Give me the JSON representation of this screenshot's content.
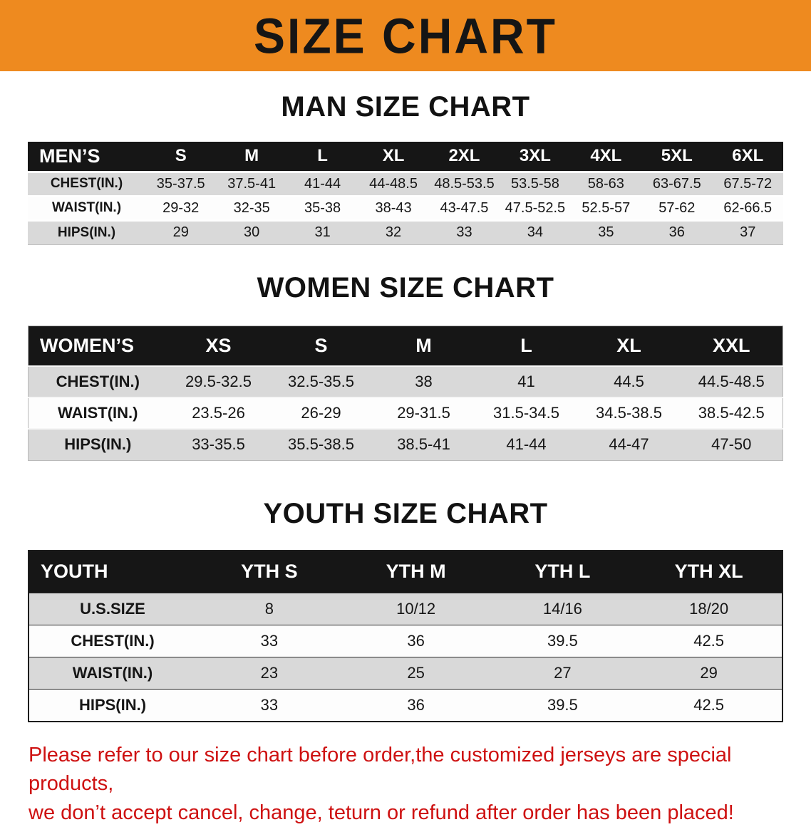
{
  "banner": {
    "title": "SIZE CHART"
  },
  "colors": {
    "banner_bg": "#ee8a1f",
    "header_bg": "#161616",
    "row_gray": "#d9d9d9",
    "note_red": "#ce1111"
  },
  "sections": [
    {
      "heading": "MAN SIZE CHART",
      "table": {
        "header": [
          "MEN’S",
          "S",
          "M",
          "L",
          "XL",
          "2XL",
          "3XL",
          "4XL",
          "5XL",
          "6XL"
        ],
        "rows": [
          [
            "CHEST(IN.)",
            "35-37.5",
            "37.5-41",
            "41-44",
            "44-48.5",
            "48.5-53.5",
            "53.5-58",
            "58-63",
            "63-67.5",
            "67.5-72"
          ],
          [
            "WAIST(IN.)",
            "29-32",
            "32-35",
            "35-38",
            "38-43",
            "43-47.5",
            "47.5-52.5",
            "52.5-57",
            "57-62",
            "62-66.5"
          ],
          [
            "HIPS(IN.)",
            "29",
            "30",
            "31",
            "32",
            "33",
            "34",
            "35",
            "36",
            "37"
          ]
        ]
      }
    },
    {
      "heading": "WOMEN SIZE CHART",
      "table": {
        "header": [
          "WOMEN’S",
          "XS",
          "S",
          "M",
          "L",
          "XL",
          "XXL"
        ],
        "rows": [
          [
            "CHEST(IN.)",
            "29.5-32.5",
            "32.5-35.5",
            "38",
            "41",
            "44.5",
            "44.5-48.5"
          ],
          [
            "WAIST(IN.)",
            "23.5-26",
            "26-29",
            "29-31.5",
            "31.5-34.5",
            "34.5-38.5",
            "38.5-42.5"
          ],
          [
            "HIPS(IN.)",
            "33-35.5",
            "35.5-38.5",
            "38.5-41",
            "41-44",
            "44-47",
            "47-50"
          ]
        ]
      }
    },
    {
      "heading": "YOUTH SIZE CHART",
      "table": {
        "header": [
          "YOUTH",
          "YTH S",
          "YTH M",
          "YTH L",
          "YTH XL"
        ],
        "rows": [
          [
            "U.S.SIZE",
            "8",
            "10/12",
            "14/16",
            "18/20"
          ],
          [
            "CHEST(IN.)",
            "33",
            "36",
            "39.5",
            "42.5"
          ],
          [
            "WAIST(IN.)",
            "23",
            "25",
            "27",
            "29"
          ],
          [
            "HIPS(IN.)",
            "33",
            "36",
            "39.5",
            "42.5"
          ]
        ]
      }
    }
  ],
  "footer": {
    "lines": [
      "Please refer to our size chart before order,the customized jerseys are special products,",
      "we don’t accept cancel, change, teturn or refund after order has been placed!"
    ]
  }
}
